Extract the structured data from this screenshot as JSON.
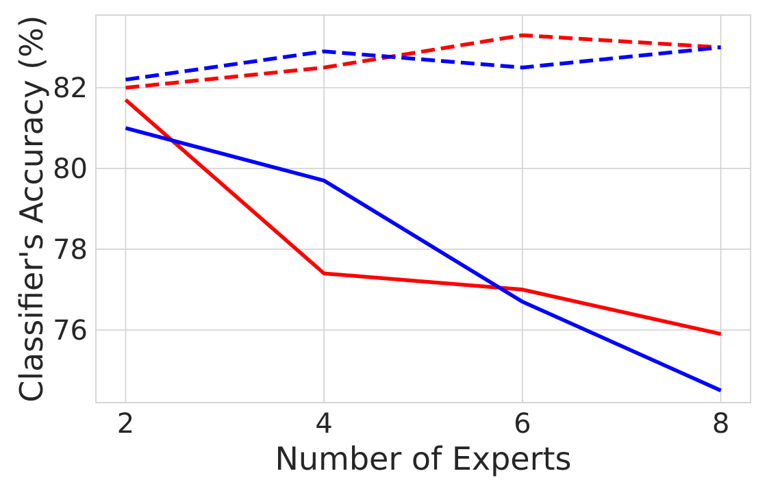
{
  "chart_data": {
    "type": "line",
    "title": "",
    "xlabel": "Number of Experts",
    "ylabel": "Classifier's Accuracy (%)",
    "x": [
      2,
      4,
      6,
      8
    ],
    "xlim": [
      1.7,
      8.3
    ],
    "ylim": [
      74.2,
      83.8
    ],
    "xticks": [
      2,
      4,
      6,
      8
    ],
    "yticks": [
      76,
      78,
      80,
      82
    ],
    "grid": true,
    "legend": "none",
    "series": [
      {
        "color": "#ff0000",
        "style": "dashed",
        "values": [
          82.0,
          82.5,
          83.3,
          83.0
        ]
      },
      {
        "color": "#0000ff",
        "style": "dashed",
        "values": [
          82.2,
          82.9,
          82.5,
          83.0
        ]
      },
      {
        "color": "#ff0000",
        "style": "solid",
        "values": [
          81.7,
          77.4,
          77.0,
          75.9
        ]
      },
      {
        "color": "#0000ff",
        "style": "solid",
        "values": [
          81.0,
          79.7,
          76.7,
          74.5
        ]
      }
    ]
  }
}
